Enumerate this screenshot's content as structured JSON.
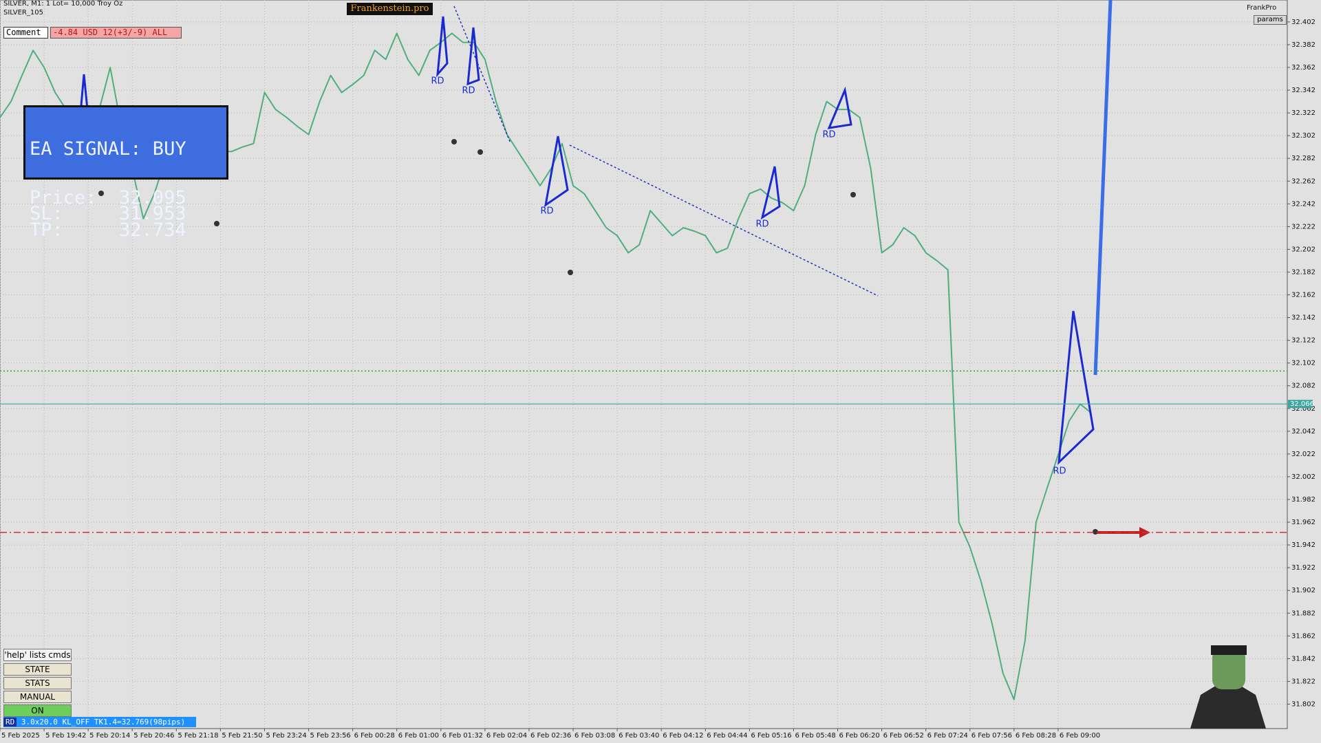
{
  "chart_data": {
    "type": "line",
    "symbol_info": "SILVER, M1: 1 Lot= 10,000 Troy Oz",
    "template": "SILVER_105",
    "categories": [
      "5 Feb 2025",
      null,
      null,
      null,
      "5 Feb 19:42",
      null,
      null,
      null,
      "5 Feb 20:14",
      null,
      null,
      null,
      "5 Feb 20:46",
      null,
      null,
      null,
      "5 Feb 21:18",
      null,
      null,
      null,
      "5 Feb 21:50",
      null,
      null,
      null,
      "5 Feb 23:24",
      null,
      null,
      null,
      "5 Feb 23:56",
      null,
      null,
      null,
      "6 Feb 00:28",
      null,
      null,
      null,
      "6 Feb 01:00",
      null,
      null,
      null,
      "6 Feb 01:32",
      null,
      null,
      null,
      "6 Feb 02:04",
      null,
      null,
      null,
      "6 Feb 02:36",
      null,
      null,
      null,
      "6 Feb 03:08",
      null,
      null,
      null,
      "6 Feb 03:40",
      null,
      null,
      null,
      "6 Feb 04:12",
      null,
      null,
      null,
      "6 Feb 04:44",
      null,
      null,
      null,
      "6 Feb 05:16",
      null,
      null,
      null,
      "6 Feb 05:48",
      null,
      null,
      null,
      "6 Feb 06:20",
      null,
      null,
      null,
      "6 Feb 06:52",
      null,
      null,
      null,
      "6 Feb 07:24",
      null,
      null,
      null,
      "6 Feb 07:56",
      null,
      null,
      null,
      "6 Feb 08:28",
      null,
      null,
      null,
      "6 Feb 09:00",
      null,
      null,
      null
    ],
    "values": [
      32.318,
      32.332,
      32.355,
      32.377,
      32.362,
      32.34,
      32.325,
      32.318,
      32.31,
      32.325,
      32.362,
      32.31,
      32.273,
      32.229,
      32.251,
      32.281,
      32.295,
      32.31,
      32.295,
      32.281,
      32.288,
      32.288,
      32.292,
      32.295,
      32.34,
      32.325,
      32.318,
      32.31,
      32.303,
      32.332,
      32.355,
      32.34,
      32.347,
      32.355,
      32.377,
      32.369,
      32.392,
      32.369,
      32.355,
      32.377,
      32.384,
      32.392,
      32.384,
      32.384,
      32.369,
      32.332,
      32.303,
      32.288,
      32.273,
      32.258,
      32.273,
      32.295,
      32.258,
      32.251,
      32.236,
      32.221,
      32.214,
      32.199,
      32.206,
      32.236,
      32.225,
      32.214,
      32.221,
      32.218,
      32.214,
      32.199,
      32.203,
      32.229,
      32.251,
      32.255,
      32.247,
      32.243,
      32.236,
      32.258,
      32.303,
      32.332,
      32.325,
      32.325,
      32.318,
      32.273,
      32.199,
      32.206,
      32.221,
      32.214,
      32.199,
      32.192,
      32.184,
      31.962,
      31.94,
      31.91,
      31.873,
      31.829,
      31.806,
      31.858,
      31.962,
      31.992,
      32.021,
      32.051,
      32.066,
      32.058
    ],
    "color": "#4fae7e",
    "ylim": [
      31.7805,
      32.4213
    ],
    "yticks": [
      32.402,
      32.382,
      32.362,
      32.342,
      32.322,
      32.302,
      32.282,
      32.262,
      32.242,
      32.222,
      32.202,
      32.182,
      32.162,
      32.142,
      32.122,
      32.102,
      32.082,
      32.062,
      32.042,
      32.022,
      32.002,
      31.982,
      31.962,
      31.942,
      31.922,
      31.902,
      31.882,
      31.862,
      31.842,
      31.822,
      31.802
    ],
    "grid": true,
    "current_price": 32.066,
    "current_price_color": "#3aa7a0",
    "levels": [
      {
        "value": 32.095,
        "color": "#3c9a3c",
        "style": "dotted"
      },
      {
        "value": 31.953,
        "color": "#d03030",
        "style": "dashdot"
      }
    ],
    "pattern_labels": [
      "RD",
      "RD",
      "RD",
      "RD",
      "RD",
      "RD"
    ]
  },
  "ui": {
    "brand": "Frankenstein.pro",
    "comment_label": "Comment",
    "account": "-4.84 USD 12(+3/-9) ALL",
    "signal": {
      "title": "EA SIGNAL: BUY",
      "lines": [
        "Price:  32.095",
        "SL:     31.953",
        "TP:     32.734"
      ]
    },
    "profile": "FrankPro",
    "params": "params",
    "help": "'help' lists cmds",
    "buttons": [
      "STATE",
      "STATS",
      "MANUAL",
      "ON"
    ],
    "status_tag": "RD",
    "status": "3.0x20.0 KL_OFF TK1.4=32.769(98pips)"
  }
}
